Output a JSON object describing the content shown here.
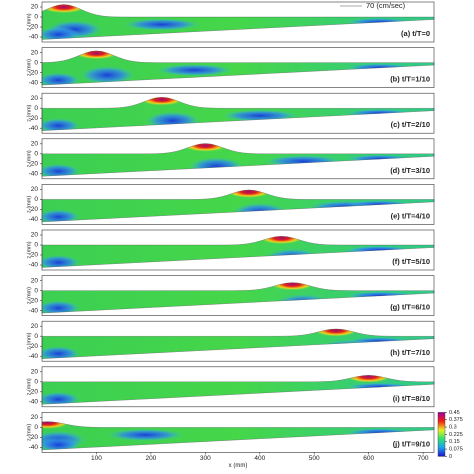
{
  "chart_data": [
    {
      "type": "contour",
      "label": "(a) t/T=0",
      "annotation": "70 (cm/sec)",
      "ylabel": "z (mm)",
      "ylim": [
        -50,
        30
      ],
      "yticks": [
        20,
        0,
        -20,
        -40
      ]
    },
    {
      "type": "contour",
      "label": "(b) t/T=1/10",
      "ylabel": "z (mm)",
      "ylim": [
        -50,
        30
      ],
      "yticks": [
        20,
        0,
        -20,
        -40
      ]
    },
    {
      "type": "contour",
      "label": "(c) t/T=2/10",
      "ylabel": "z (mm)",
      "ylim": [
        -50,
        30
      ],
      "yticks": [
        20,
        0,
        -20,
        -40
      ]
    },
    {
      "type": "contour",
      "label": "(d) t/T=3/10",
      "ylabel": "z (mm)",
      "ylim": [
        -50,
        30
      ],
      "yticks": [
        20,
        0,
        -20,
        -40
      ]
    },
    {
      "type": "contour",
      "label": "(e) t/T=4/10",
      "ylabel": "z (mm)",
      "ylim": [
        -50,
        30
      ],
      "yticks": [
        20,
        0,
        -20,
        -40
      ]
    },
    {
      "type": "contour",
      "label": "(f) t/T=5/10",
      "ylabel": "z (mm)",
      "ylim": [
        -50,
        30
      ],
      "yticks": [
        20,
        0,
        -20,
        -40
      ]
    },
    {
      "type": "contour",
      "label": "(g) t/T=6/10",
      "ylabel": "z (mm)",
      "ylim": [
        -50,
        30
      ],
      "yticks": [
        20,
        0,
        -20,
        -40
      ]
    },
    {
      "type": "contour",
      "label": "(h) t/T=7/10",
      "ylabel": "z (mm)",
      "ylim": [
        -50,
        30
      ],
      "yticks": [
        20,
        0,
        -20,
        -40
      ]
    },
    {
      "type": "contour",
      "label": "(i) t/T=8/10",
      "ylabel": "z (mm)",
      "ylim": [
        -50,
        30
      ],
      "yticks": [
        20,
        0,
        -20,
        -40
      ]
    },
    {
      "type": "contour",
      "label": "(j) t/T=9/10",
      "ylabel": "z (mm)",
      "ylim": [
        -50,
        30
      ],
      "yticks": [
        20,
        0,
        -20,
        -40
      ],
      "xlabel": "x (mm)",
      "xlim": [
        0,
        720
      ],
      "xticks": [
        100,
        200,
        300,
        400,
        500,
        600,
        700
      ],
      "colorbar": {
        "lim": [
          0,
          0.45
        ],
        "ticks": [
          0.45,
          0.375,
          0.3,
          0.225,
          0.15,
          0.075,
          0
        ]
      }
    }
  ]
}
